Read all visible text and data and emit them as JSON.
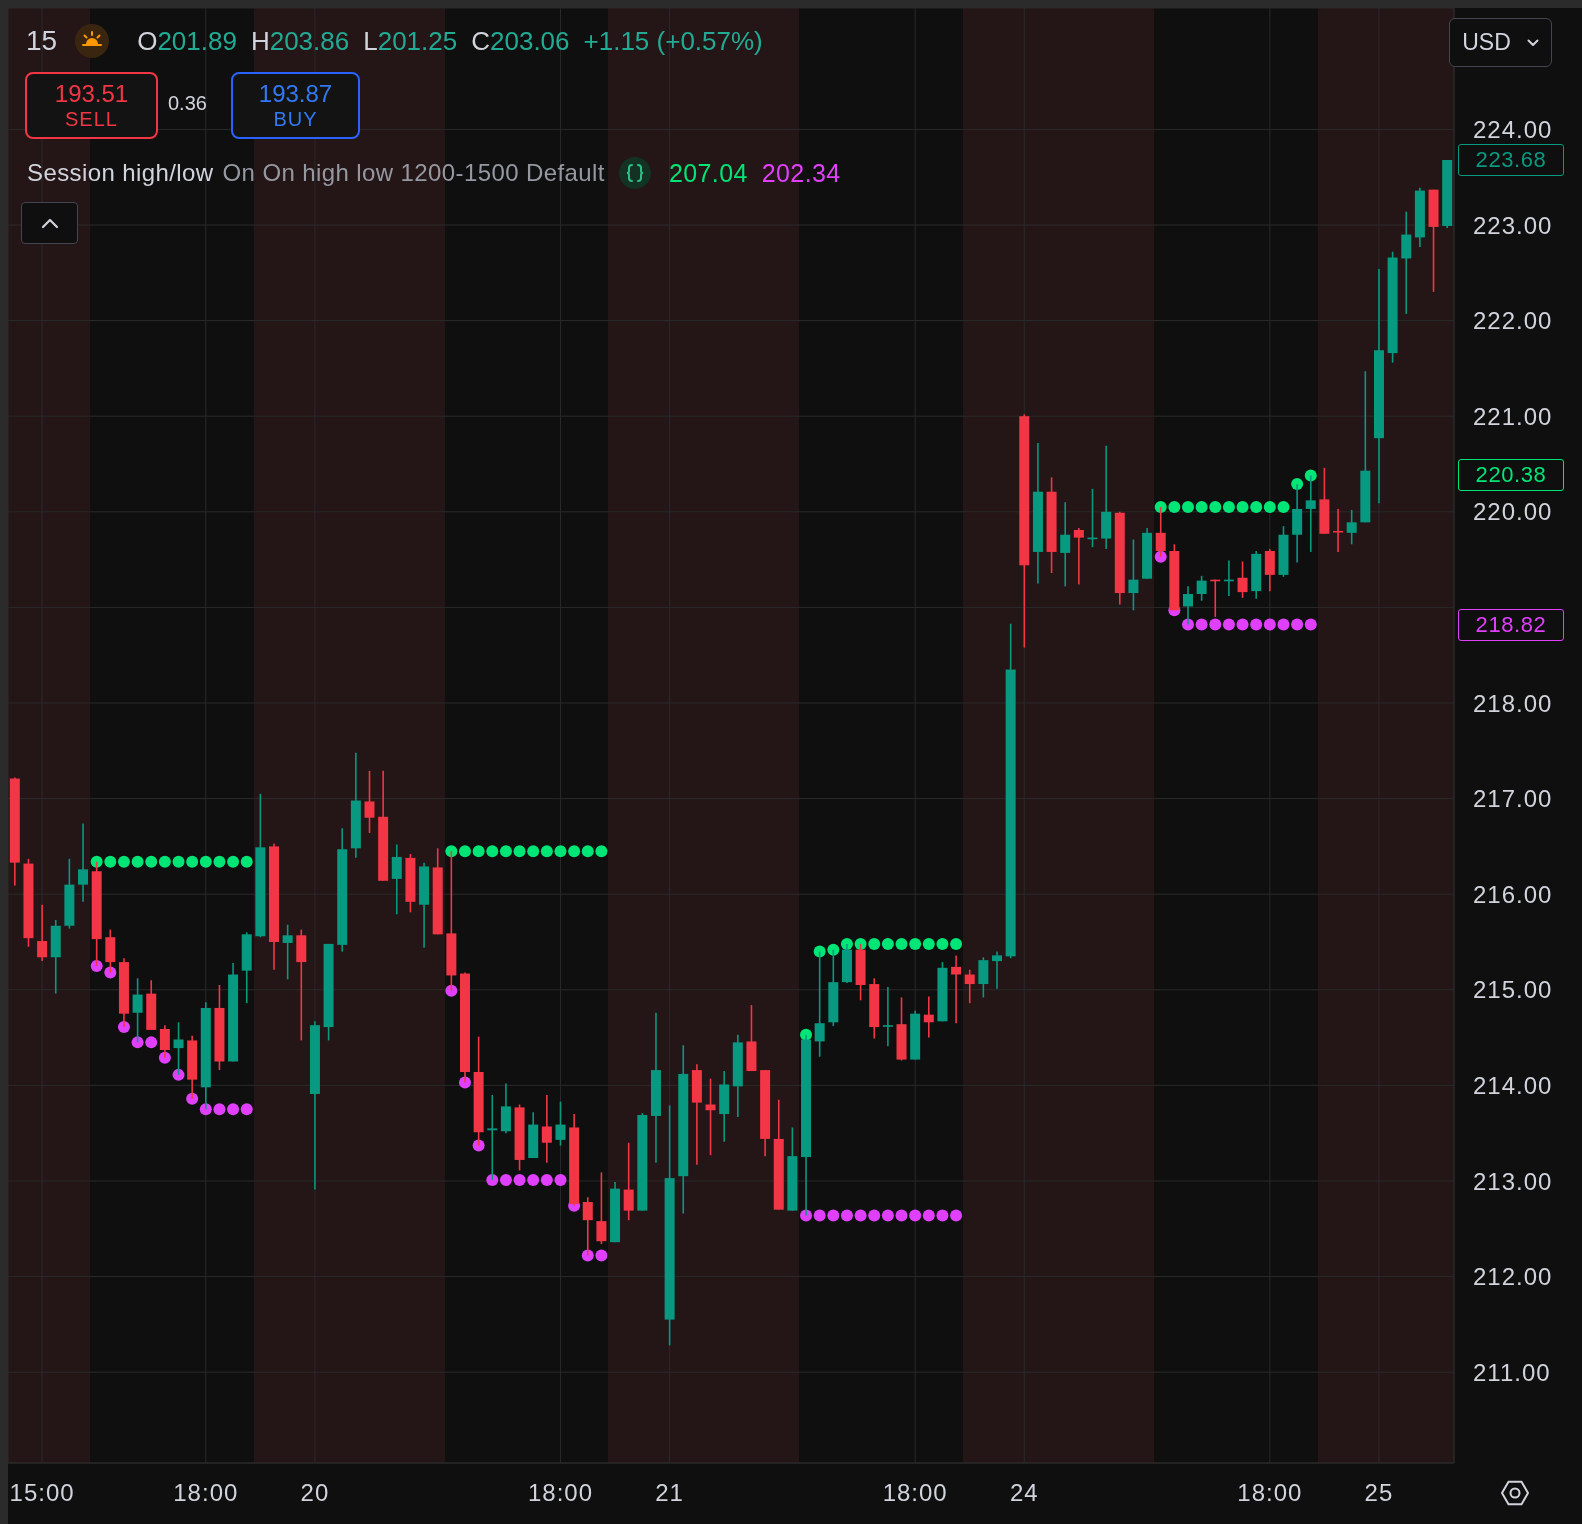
{
  "chart_data": {
    "type": "candlestick",
    "title": "15",
    "categories": [
      null,
      null,
      "15:00",
      null,
      null,
      null,
      null,
      null,
      null,
      null,
      null,
      null,
      null,
      null,
      "18:00",
      null,
      null,
      null,
      null,
      null,
      null,
      null,
      "20",
      null,
      null,
      null,
      null,
      null,
      null,
      null,
      null,
      null,
      null,
      null,
      null,
      null,
      null,
      null,
      null,
      null,
      "18:00",
      null,
      null,
      null,
      null,
      null,
      null,
      null,
      "21",
      null,
      null,
      null,
      null,
      null,
      null,
      null,
      null,
      null,
      null,
      null,
      null,
      null,
      null,
      null,
      null,
      null,
      "18:00",
      null,
      null,
      null,
      null,
      null,
      null,
      null,
      "24",
      null,
      null,
      null,
      null,
      null,
      null,
      null,
      null,
      null,
      null,
      null,
      null,
      null,
      null,
      null,
      null,
      null,
      "18:00",
      null,
      null,
      null,
      null,
      null,
      null,
      null,
      "25",
      null,
      null,
      null,
      null,
      null
    ],
    "ohlc": [
      [
        217.21,
        217.22,
        216.09,
        216.33
      ],
      [
        216.32,
        216.37,
        215.45,
        215.54
      ],
      [
        215.51,
        215.89,
        215.3,
        215.34
      ],
      [
        215.34,
        215.73,
        214.96,
        215.67
      ],
      [
        215.67,
        216.37,
        215.64,
        216.1
      ],
      [
        216.1,
        216.74,
        215.92,
        216.26
      ],
      [
        216.24,
        216.34,
        215.25,
        215.53
      ],
      [
        215.55,
        215.63,
        215.18,
        215.29
      ],
      [
        215.29,
        215.33,
        214.61,
        214.75
      ],
      [
        214.76,
        215.12,
        214.45,
        214.95
      ],
      [
        214.96,
        215.1,
        214.58,
        214.58
      ],
      [
        214.59,
        214.63,
        214.29,
        214.37
      ],
      [
        214.39,
        214.66,
        214.11,
        214.48
      ],
      [
        214.47,
        214.52,
        213.86,
        214.06
      ],
      [
        213.98,
        214.87,
        213.75,
        214.81
      ],
      [
        214.81,
        215.05,
        214.16,
        214.25
      ],
      [
        214.25,
        215.28,
        214.25,
        215.16
      ],
      [
        215.2,
        215.6,
        214.86,
        215.58
      ],
      [
        215.56,
        217.05,
        215.55,
        216.49
      ],
      [
        216.5,
        216.53,
        215.21,
        215.5
      ],
      [
        215.49,
        215.68,
        215.11,
        215.57
      ],
      [
        215.57,
        215.63,
        214.47,
        215.29
      ],
      [
        213.91,
        214.67,
        212.91,
        214.63
      ],
      [
        214.61,
        215.48,
        214.47,
        215.48
      ],
      [
        215.47,
        216.69,
        215.4,
        216.47
      ],
      [
        216.48,
        217.48,
        216.38,
        216.98
      ],
      [
        216.97,
        217.29,
        216.64,
        216.8
      ],
      [
        216.81,
        217.29,
        216.14,
        216.14
      ],
      [
        216.16,
        216.52,
        215.79,
        216.39
      ],
      [
        216.38,
        216.42,
        215.81,
        215.92
      ],
      [
        215.89,
        216.33,
        215.44,
        216.29
      ],
      [
        216.28,
        216.48,
        215.58,
        215.58
      ],
      [
        215.59,
        216.45,
        214.99,
        215.15
      ],
      [
        215.17,
        215.18,
        214.03,
        214.14
      ],
      [
        214.14,
        214.51,
        213.37,
        213.51
      ],
      [
        213.53,
        213.9,
        213.01,
        213.55
      ],
      [
        213.52,
        214.02,
        213.5,
        213.78
      ],
      [
        213.77,
        213.8,
        213.11,
        213.22
      ],
      [
        213.24,
        213.72,
        213.24,
        213.59
      ],
      [
        213.57,
        213.9,
        213.19,
        213.4
      ],
      [
        213.43,
        213.83,
        213.37,
        213.59
      ],
      [
        213.56,
        213.7,
        212.74,
        212.76
      ],
      [
        212.78,
        212.83,
        212.22,
        212.59
      ],
      [
        212.58,
        213.09,
        212.34,
        212.37
      ],
      [
        212.36,
        212.99,
        212.36,
        212.92
      ],
      [
        212.91,
        213.4,
        212.59,
        212.69
      ],
      [
        212.69,
        213.71,
        212.69,
        213.69
      ],
      [
        213.68,
        214.76,
        213.19,
        214.16
      ],
      [
        211.55,
        213.79,
        211.28,
        213.03
      ],
      [
        213.05,
        214.42,
        212.66,
        214.12
      ],
      [
        214.16,
        214.22,
        213.17,
        213.82
      ],
      [
        213.8,
        214.07,
        213.27,
        213.74
      ],
      [
        213.7,
        214.15,
        213.41,
        214.01
      ],
      [
        213.99,
        214.53,
        213.67,
        214.45
      ],
      [
        214.46,
        214.84,
        214.15,
        214.15
      ],
      [
        214.16,
        214.16,
        213.26,
        213.44
      ],
      [
        213.44,
        213.85,
        212.7,
        212.7
      ],
      [
        212.69,
        213.56,
        212.69,
        213.26
      ],
      [
        213.25,
        214.53,
        212.64,
        214.48
      ],
      [
        214.46,
        215.4,
        214.3,
        214.65
      ],
      [
        214.66,
        215.42,
        214.62,
        215.08
      ],
      [
        215.08,
        215.48,
        215.07,
        215.42
      ],
      [
        215.42,
        215.48,
        214.89,
        215.05
      ],
      [
        215.06,
        215.12,
        214.49,
        214.61
      ],
      [
        214.62,
        215.03,
        214.41,
        214.63
      ],
      [
        214.64,
        214.92,
        214.26,
        214.27
      ],
      [
        214.27,
        214.78,
        214.27,
        214.75
      ],
      [
        214.74,
        214.93,
        214.5,
        214.66
      ],
      [
        214.67,
        215.29,
        214.67,
        215.23
      ],
      [
        215.24,
        215.36,
        214.65,
        215.16
      ],
      [
        215.16,
        215.21,
        214.86,
        215.06
      ],
      [
        215.06,
        215.34,
        214.92,
        215.31
      ],
      [
        215.3,
        215.4,
        215.01,
        215.36
      ],
      [
        215.35,
        218.83,
        215.33,
        218.35
      ],
      [
        221.0,
        221.02,
        218.58,
        219.44
      ],
      [
        219.58,
        220.72,
        219.25,
        220.21
      ],
      [
        220.21,
        220.36,
        219.36,
        219.58
      ],
      [
        219.57,
        220.1,
        219.22,
        219.76
      ],
      [
        219.81,
        219.83,
        219.24,
        219.73
      ],
      [
        219.72,
        220.24,
        219.63,
        219.73
      ],
      [
        219.72,
        220.69,
        219.61,
        220.0
      ],
      [
        219.99,
        220.0,
        219.03,
        219.15
      ],
      [
        219.15,
        219.71,
        218.97,
        219.29
      ],
      [
        219.3,
        219.83,
        219.3,
        219.78
      ],
      [
        219.78,
        220.05,
        219.53,
        219.59
      ],
      [
        219.59,
        219.66,
        218.97,
        218.97
      ],
      [
        219.01,
        219.22,
        218.82,
        219.14
      ],
      [
        219.14,
        219.33,
        219.07,
        219.28
      ],
      [
        219.29,
        219.29,
        218.9,
        219.28
      ],
      [
        219.28,
        219.49,
        219.12,
        219.29
      ],
      [
        219.31,
        219.48,
        219.1,
        219.16
      ],
      [
        219.17,
        219.59,
        219.09,
        219.56
      ],
      [
        219.59,
        219.61,
        219.17,
        219.34
      ],
      [
        219.34,
        219.85,
        219.32,
        219.76
      ],
      [
        219.76,
        220.29,
        219.47,
        220.03
      ],
      [
        220.03,
        220.38,
        219.58,
        220.12
      ],
      [
        220.13,
        220.46,
        219.77,
        219.77
      ],
      [
        219.8,
        220.03,
        219.58,
        219.79
      ],
      [
        219.78,
        220.02,
        219.66,
        219.89
      ],
      [
        219.89,
        221.47,
        219.89,
        220.43
      ],
      [
        220.77,
        222.54,
        220.09,
        221.69
      ],
      [
        221.66,
        222.72,
        221.56,
        222.66
      ],
      [
        222.65,
        223.14,
        222.07,
        222.9
      ],
      [
        222.87,
        223.39,
        222.77,
        223.36
      ],
      [
        223.37,
        223.37,
        222.3,
        222.98
      ],
      [
        222.99,
        223.68,
        222.97,
        223.68
      ]
    ],
    "colors": [
      "#f23645",
      "#f23645",
      "#f23645",
      "#089981",
      "#089981",
      "#089981",
      "#f23645",
      "#f23645",
      "#f23645",
      "#089981",
      "#f23645",
      "#f23645",
      "#089981",
      "#f23645",
      "#089981",
      "#f23645",
      "#089981",
      "#089981",
      "#089981",
      "#f23645",
      "#089981",
      "#f23645",
      "#089981",
      "#089981",
      "#089981",
      "#089981",
      "#f23645",
      "#f23645",
      "#089981",
      "#f23645",
      "#089981",
      "#f23645",
      "#f23645",
      "#f23645",
      "#f23645",
      "#089981",
      "#089981",
      "#f23645",
      "#089981",
      "#f23645",
      "#089981",
      "#f23645",
      "#f23645",
      "#f23645",
      "#089981",
      "#f23645",
      "#089981",
      "#089981",
      "#089981",
      "#089981",
      "#f23645",
      "#f23645",
      "#089981",
      "#089981",
      "#f23645",
      "#f23645",
      "#f23645",
      "#089981",
      "#089981",
      "#089981",
      "#089981",
      "#089981",
      "#f23645",
      "#f23645",
      "#089981",
      "#f23645",
      "#089981",
      "#f23645",
      "#089981",
      "#f23645",
      "#f23645",
      "#089981",
      "#089981",
      "#089981",
      "#f23645",
      "#089981",
      "#f23645",
      "#089981",
      "#f23645",
      "#089981",
      "#089981",
      "#f23645",
      "#089981",
      "#089981",
      "#f23645",
      "#f23645",
      "#089981",
      "#089981",
      "#f23645",
      "#089981",
      "#f23645",
      "#089981",
      "#f23645",
      "#089981",
      "#089981",
      "#089981",
      "#f23645",
      "#f23645",
      "#089981",
      "#089981",
      "#089981",
      "#089981",
      "#089981",
      "#089981",
      "#f23645",
      "#089981"
    ],
    "series": [
      {
        "type": "scatter",
        "color": "#00e676",
        "values": [
          null,
          null,
          null,
          null,
          null,
          null,
          216.34,
          216.34,
          216.34,
          216.34,
          216.34,
          216.34,
          216.34,
          216.34,
          216.34,
          216.34,
          216.34,
          216.34,
          null,
          null,
          null,
          null,
          null,
          null,
          null,
          null,
          null,
          null,
          null,
          null,
          null,
          null,
          216.45,
          216.45,
          216.45,
          216.45,
          216.45,
          216.45,
          216.45,
          216.45,
          216.45,
          216.45,
          216.45,
          216.45,
          null,
          null,
          null,
          null,
          null,
          null,
          null,
          null,
          null,
          null,
          null,
          null,
          null,
          null,
          214.53,
          215.4,
          215.42,
          215.48,
          215.48,
          215.48,
          215.48,
          215.48,
          215.48,
          215.48,
          215.48,
          215.48,
          null,
          null,
          null,
          null,
          null,
          null,
          null,
          null,
          null,
          null,
          null,
          null,
          null,
          null,
          220.05,
          220.05,
          220.05,
          220.05,
          220.05,
          220.05,
          220.05,
          220.05,
          220.05,
          220.05,
          220.29,
          220.38,
          null,
          null,
          null,
          null,
          null,
          null,
          null,
          null,
          null,
          null
        ]
      },
      {
        "type": "scatter",
        "color": "#e040fb",
        "values": [
          null,
          null,
          null,
          null,
          null,
          null,
          215.25,
          215.18,
          214.61,
          214.45,
          214.45,
          214.29,
          214.11,
          213.86,
          213.75,
          213.75,
          213.75,
          213.75,
          null,
          null,
          null,
          null,
          null,
          null,
          null,
          null,
          null,
          null,
          null,
          null,
          null,
          null,
          214.99,
          214.03,
          213.37,
          213.01,
          213.01,
          213.01,
          213.01,
          213.01,
          213.01,
          212.74,
          212.22,
          212.22,
          null,
          null,
          null,
          null,
          null,
          null,
          null,
          null,
          null,
          null,
          null,
          null,
          null,
          null,
          212.64,
          212.64,
          212.64,
          212.64,
          212.64,
          212.64,
          212.64,
          212.64,
          212.64,
          212.64,
          212.64,
          212.64,
          null,
          null,
          null,
          null,
          null,
          null,
          null,
          null,
          null,
          null,
          null,
          null,
          null,
          null,
          219.53,
          218.97,
          218.82,
          218.82,
          218.82,
          218.82,
          218.82,
          218.82,
          218.82,
          218.82,
          218.82,
          218.82,
          null,
          null,
          null,
          null,
          null,
          null,
          null,
          null,
          null,
          null
        ]
      }
    ],
    "marker": "circle",
    "ylim": [
      210.05,
      225.27
    ],
    "yticks": [
      {
        "value": 211,
        "label": "211.00"
      },
      {
        "value": 212,
        "label": "212.00"
      },
      {
        "value": 213,
        "label": "213.00"
      },
      {
        "value": 214,
        "label": "214.00"
      },
      {
        "value": 215,
        "label": "215.00"
      },
      {
        "value": 216,
        "label": "216.00"
      },
      {
        "value": 217,
        "label": "217.00"
      },
      {
        "value": 218,
        "label": "218.00"
      },
      {
        "value": 219,
        "label": null
      },
      {
        "value": 220,
        "label": "220.00"
      },
      {
        "value": 221,
        "label": "221.00"
      },
      {
        "value": 222,
        "label": "222.00"
      },
      {
        "value": 223,
        "label": "223.00"
      },
      {
        "value": 224,
        "label": "224.00"
      }
    ],
    "grid": true,
    "annotations": [
      "O201.89",
      "H203.86",
      "L201.25",
      "C203.06",
      "+1.15 (+0.57%)",
      "193.51",
      "SELL",
      "0.36",
      "193.87",
      "BUY",
      "Session high/low",
      "On On high low 1200-1500 Default",
      "207.04",
      "202.34",
      "USD",
      "223.68",
      "220.38",
      "218.82"
    ]
  }
}
